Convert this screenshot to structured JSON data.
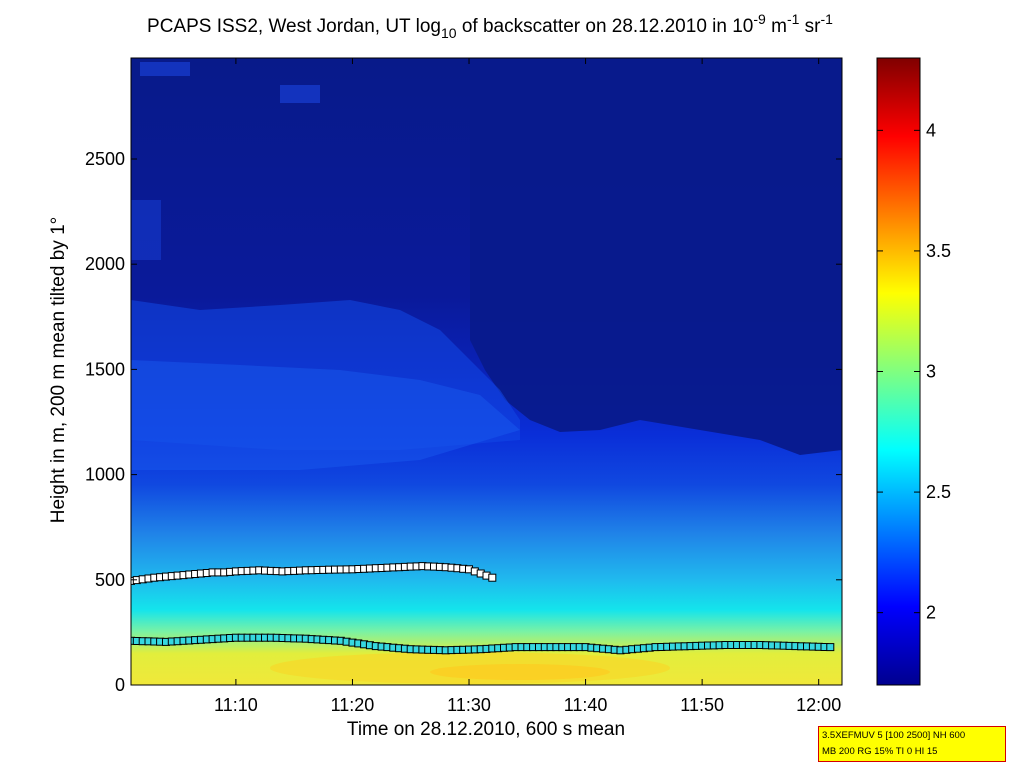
{
  "chart_data": {
    "type": "heatmap",
    "title_parts": {
      "prefix": "PCAPS ISS2, West Jordan, UT log",
      "sub10": "10",
      "middle": " of backscatter on 28.12.2010 in 10",
      "sup_exp": "-9",
      "unit_m": " m",
      "sup_m": "-1",
      "unit_sr": " sr",
      "sup_sr": "-1"
    },
    "xlabel": "Time on 28.12.2010, 600 s mean",
    "ylabel": "Height in m, 200 m mean tilted by 1°",
    "x_range": [
      "11:01",
      "12:02"
    ],
    "y_range": [
      0,
      2980
    ],
    "x_ticks": [
      "11:10",
      "11:20",
      "11:30",
      "11:40",
      "11:50",
      "12:00"
    ],
    "y_ticks": [
      0,
      500,
      1000,
      1500,
      2000,
      2500
    ],
    "colorbar": {
      "range": [
        1.7,
        4.3
      ],
      "ticks": [
        "2",
        "2.5",
        "3",
        "3.5",
        "4"
      ],
      "colormap": "jet"
    },
    "series": [
      {
        "marker": "white-square",
        "x": [
          "11:01",
          "11:03",
          "11:05",
          "11:07",
          "11:08",
          "11:09",
          "11:10",
          "11:12",
          "11:14",
          "11:16",
          "11:18",
          "11:20",
          "11:22",
          "11:24",
          "11:26",
          "11:28",
          "11:30",
          "11:31",
          "11:32"
        ],
        "y": [
          495,
          510,
          520,
          530,
          535,
          535,
          540,
          545,
          540,
          545,
          548,
          550,
          555,
          560,
          565,
          560,
          550,
          530,
          510
        ]
      },
      {
        "marker": "cyan-square",
        "x": [
          "11:01",
          "11:04",
          "11:07",
          "11:10",
          "11:13",
          "11:16",
          "11:19",
          "11:22",
          "11:25",
          "11:28",
          "11:31",
          "11:34",
          "11:37",
          "11:40",
          "11:43",
          "11:46",
          "11:49",
          "11:52",
          "11:55",
          "11:58",
          "12:01"
        ],
        "y": [
          210,
          205,
          215,
          225,
          225,
          220,
          210,
          185,
          170,
          165,
          170,
          180,
          180,
          180,
          165,
          180,
          185,
          190,
          190,
          185,
          180
        ]
      }
    ],
    "info_lines": [
      "3.5XEFMUV 5 [100 2500] NH 600",
      "MB 200 RG 15% TI 0 HI 15"
    ]
  }
}
